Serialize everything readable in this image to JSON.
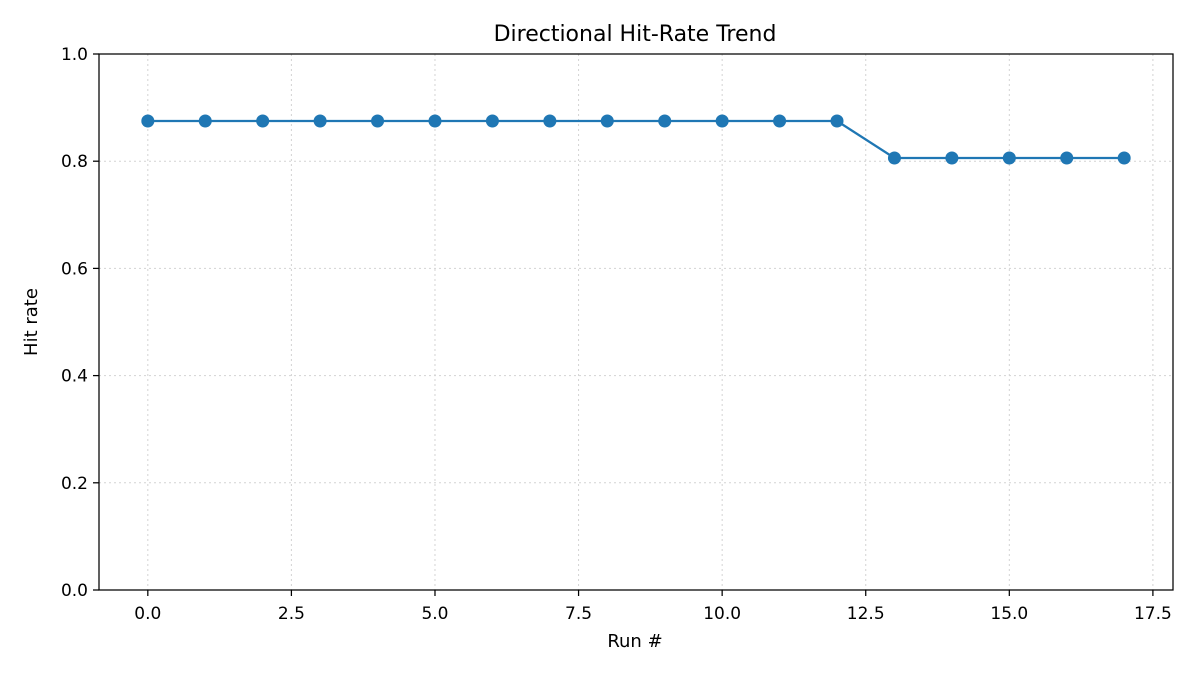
{
  "chart_data": {
    "type": "line",
    "title": "Directional Hit-Rate Trend",
    "xlabel": "Run #",
    "ylabel": "Hit rate",
    "xlim": [
      -0.85,
      17.85
    ],
    "ylim": [
      0.0,
      1.0
    ],
    "xticks": [
      0.0,
      2.5,
      5.0,
      7.5,
      10.0,
      12.5,
      15.0,
      17.5
    ],
    "xtick_labels": [
      "0.0",
      "2.5",
      "5.0",
      "7.5",
      "10.0",
      "12.5",
      "15.0",
      "17.5"
    ],
    "yticks": [
      0.0,
      0.2,
      0.4,
      0.6,
      0.8,
      1.0
    ],
    "ytick_labels": [
      "0.0",
      "0.2",
      "0.4",
      "0.6",
      "0.8",
      "1.0"
    ],
    "grid": true,
    "series": [
      {
        "x": [
          0,
          1,
          2,
          3,
          4,
          5,
          6,
          7,
          8,
          9,
          10,
          11,
          12,
          13,
          14,
          15,
          16,
          17
        ],
        "y": [
          0.875,
          0.875,
          0.875,
          0.875,
          0.875,
          0.875,
          0.875,
          0.875,
          0.875,
          0.875,
          0.875,
          0.875,
          0.875,
          0.806,
          0.806,
          0.806,
          0.806,
          0.806
        ],
        "color": "#1f77b4",
        "marker": "circle"
      }
    ]
  }
}
